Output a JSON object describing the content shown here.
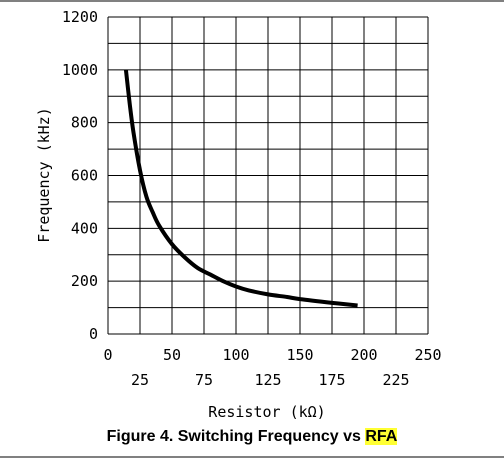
{
  "caption": {
    "text": "Figure 4. Switching Frequency vs ",
    "highlight": "RFA",
    "highlight_color": "#ffff33"
  },
  "chart_data": {
    "type": "line",
    "title": "",
    "xlabel": "Resistor (kΩ)",
    "ylabel": "Frequency (kHz)",
    "xlim": [
      0,
      250
    ],
    "ylim": [
      0,
      1200
    ],
    "x_ticks_upper": [
      "0",
      "50",
      "100",
      "150",
      "200",
      "250"
    ],
    "x_ticks_lower": [
      "25",
      "75",
      "125",
      "175",
      "225"
    ],
    "y_ticks": [
      "0",
      "200",
      "400",
      "600",
      "800",
      "1000",
      "1200"
    ],
    "grid": true,
    "series": [
      {
        "color": "#000000",
        "x": [
          14,
          17,
          20,
          25,
          30,
          35,
          40,
          50,
          60,
          70,
          80,
          90,
          100,
          110,
          125,
          140,
          150,
          175,
          195
        ],
        "y": [
          1000,
          870,
          760,
          620,
          520,
          460,
          410,
          340,
          290,
          250,
          225,
          200,
          180,
          165,
          150,
          140,
          132,
          118,
          108
        ]
      }
    ]
  }
}
